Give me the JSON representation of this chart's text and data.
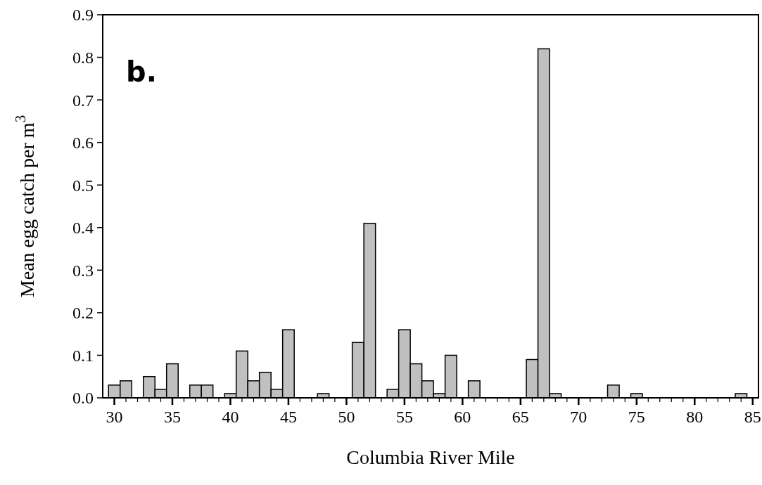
{
  "chart_data": {
    "type": "bar",
    "xlabel": "Columbia River Mile",
    "ylabel": "Mean egg catch per m$^{3}$",
    "annotations": [
      "b."
    ],
    "x": [
      30,
      31,
      33,
      34,
      35,
      37,
      38,
      40,
      41,
      42,
      43,
      44,
      45,
      48,
      51,
      52,
      54,
      55,
      56,
      57,
      58,
      59,
      61,
      66,
      67,
      68,
      73,
      75,
      84
    ],
    "series": [
      {
        "color": "#c0c0c0",
        "values": [
          0.03,
          0.04,
          0.05,
          0.02,
          0.08,
          0.03,
          0.03,
          0.01,
          0.11,
          0.04,
          0.06,
          0.02,
          0.16,
          0.01,
          0.13,
          0.41,
          0.02,
          0.16,
          0.08,
          0.04,
          0.01,
          0.1,
          0.04,
          0.09,
          0.82,
          0.01,
          0.03,
          0.01,
          0.01
        ]
      }
    ],
    "xlim": [
      29,
      85.5
    ],
    "xticks": [
      30,
      {
        "value": 31,
        "label": null
      },
      {
        "value": 32,
        "label": null
      },
      {
        "value": 33,
        "label": null
      },
      {
        "value": 34,
        "label": null
      },
      35,
      {
        "value": 36,
        "label": null
      },
      {
        "value": 37,
        "label": null
      },
      {
        "value": 38,
        "label": null
      },
      {
        "value": 39,
        "label": null
      },
      40,
      {
        "value": 41,
        "label": null
      },
      {
        "value": 42,
        "label": null
      },
      {
        "value": 43,
        "label": null
      },
      {
        "value": 44,
        "label": null
      },
      45,
      {
        "value": 46,
        "label": null
      },
      {
        "value": 47,
        "label": null
      },
      {
        "value": 48,
        "label": null
      },
      {
        "value": 49,
        "label": null
      },
      50,
      {
        "value": 51,
        "label": null
      },
      {
        "value": 52,
        "label": null
      },
      {
        "value": 53,
        "label": null
      },
      {
        "value": 54,
        "label": null
      },
      55,
      {
        "value": 56,
        "label": null
      },
      {
        "value": 57,
        "label": null
      },
      {
        "value": 58,
        "label": null
      },
      {
        "value": 59,
        "label": null
      },
      60,
      {
        "value": 61,
        "label": null
      },
      {
        "value": 62,
        "label": null
      },
      {
        "value": 63,
        "label": null
      },
      {
        "value": 64,
        "label": null
      },
      65,
      {
        "value": 66,
        "label": null
      },
      {
        "value": 67,
        "label": null
      },
      {
        "value": 68,
        "label": null
      },
      {
        "value": 69,
        "label": null
      },
      70,
      {
        "value": 71,
        "label": null
      },
      {
        "value": 72,
        "label": null
      },
      {
        "value": 73,
        "label": null
      },
      {
        "value": 74,
        "label": null
      },
      75,
      {
        "value": 76,
        "label": null
      },
      {
        "value": 77,
        "label": null
      },
      {
        "value": 78,
        "label": null
      },
      {
        "value": 79,
        "label": null
      },
      80,
      {
        "value": 81,
        "label": null
      },
      {
        "value": 82,
        "label": null
      },
      {
        "value": 83,
        "label": null
      },
      {
        "value": 84,
        "label": null
      },
      85
    ],
    "ylim": [
      0,
      0.9
    ],
    "yticks": [
      {
        "value": 0,
        "label": "0.0"
      },
      {
        "value": 0.1,
        "label": "0.1"
      },
      {
        "value": 0.2,
        "label": "0.2"
      },
      {
        "value": 0.3,
        "label": "0.3"
      },
      {
        "value": 0.4,
        "label": "0.4"
      },
      {
        "value": 0.5,
        "label": "0.5"
      },
      {
        "value": 0.6,
        "label": "0.6"
      },
      {
        "value": 0.7,
        "label": "0.7"
      },
      {
        "value": 0.8,
        "label": "0.8"
      },
      {
        "value": 0.9,
        "label": "0.9"
      }
    ],
    "grid": false
  }
}
